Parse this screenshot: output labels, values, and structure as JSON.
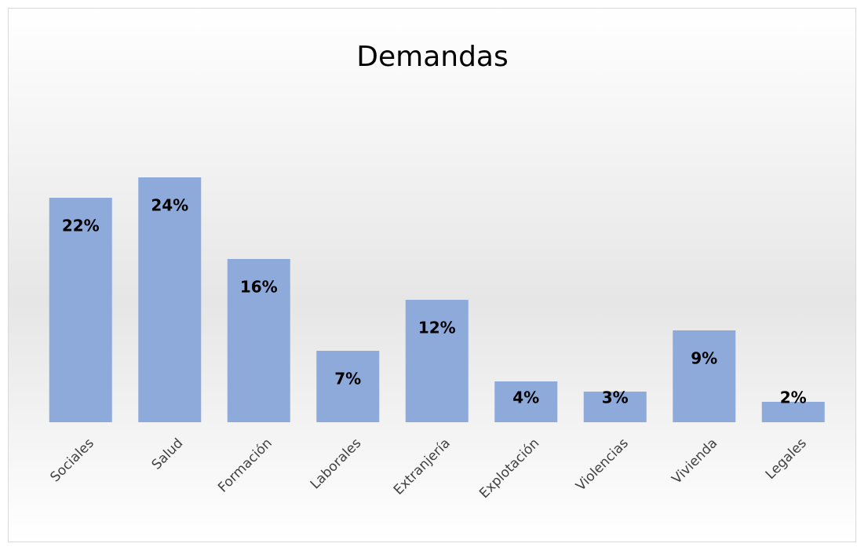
{
  "chart_data": {
    "type": "bar",
    "title": "Demandas",
    "categories": [
      "Sociales",
      "Salud",
      "Formación",
      "Laborales",
      "Extranjería",
      "Explotación",
      "Violencias",
      "Vivienda",
      "Legales"
    ],
    "values": [
      22,
      24,
      16,
      7,
      12,
      4,
      3,
      9,
      2
    ],
    "value_labels": [
      "22%",
      "24%",
      "16%",
      "7%",
      "12%",
      "4%",
      "3%",
      "9%",
      "2%"
    ],
    "color": "#8eaadb"
  }
}
